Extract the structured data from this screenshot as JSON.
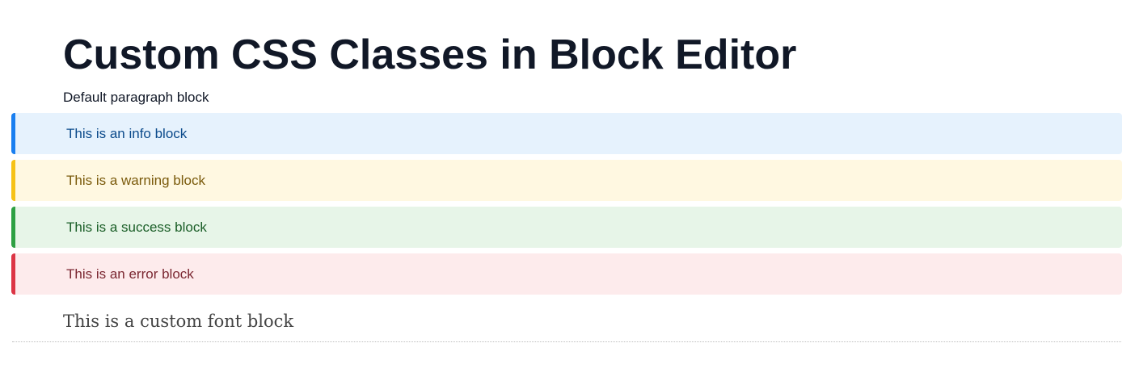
{
  "title": "Custom CSS Classes in Block Editor",
  "paragraph": "Default paragraph block",
  "blocks": [
    {
      "label": "This is an info block",
      "type": "info",
      "bg": "#e6f2fd",
      "border": "#1a7ff0",
      "text": "#0b4a8b"
    },
    {
      "label": "This is a warning block",
      "type": "warning",
      "bg": "#fff8e1",
      "border": "#f6c217",
      "text": "#7a5a0b"
    },
    {
      "label": "This is a success block",
      "type": "success",
      "bg": "#e7f5e8",
      "border": "#2ea043",
      "text": "#1a5e27"
    },
    {
      "label": "This is an error block",
      "type": "error",
      "bg": "#fdebec",
      "border": "#dc3545",
      "text": "#7a2630"
    }
  ],
  "custom_font_block": "This is a custom font block"
}
